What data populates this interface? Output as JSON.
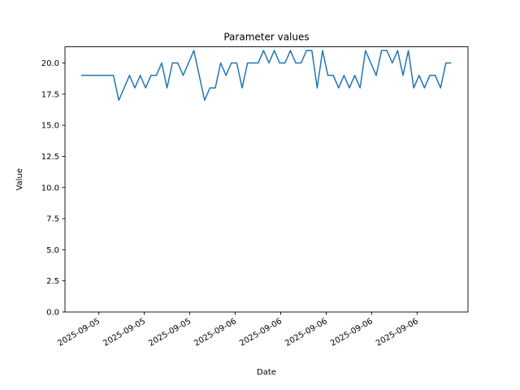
{
  "figure": {
    "background_color": "#ffffff",
    "frame_color": "#000000"
  },
  "chart_data": {
    "type": "line",
    "title": "Parameter values",
    "xlabel": "Date",
    "ylabel": "Value",
    "grid": false,
    "legend": "none",
    "ylim": [
      0,
      21.3
    ],
    "y_tick_labels": [
      "0.0",
      "2.5",
      "5.0",
      "7.5",
      "10.0",
      "12.5",
      "15.0",
      "17.5",
      "20.0"
    ],
    "x_tick_labels": [
      "2025-09-05",
      "2025-09-05",
      "2025-09-05",
      "2025-09-06",
      "2025-09-06",
      "2025-09-06",
      "2025-09-06",
      "2025-09-06"
    ],
    "series": [
      {
        "name": "parameter-values",
        "color": "#1f77b4",
        "values": [
          19,
          19,
          19,
          19,
          19,
          19,
          19,
          17,
          18,
          19,
          18,
          19,
          18,
          19,
          19,
          20,
          18,
          20,
          20,
          19,
          20,
          21,
          19,
          17,
          18,
          18,
          20,
          19,
          20,
          20,
          18,
          20,
          20,
          20,
          21,
          20,
          21,
          20,
          20,
          21,
          20,
          20,
          21,
          21,
          18,
          21,
          19,
          19,
          18,
          19,
          18,
          19,
          18,
          21,
          20,
          19,
          21,
          21,
          20,
          21,
          19,
          21,
          18,
          19,
          18,
          19,
          19,
          18,
          20,
          20
        ]
      }
    ]
  }
}
